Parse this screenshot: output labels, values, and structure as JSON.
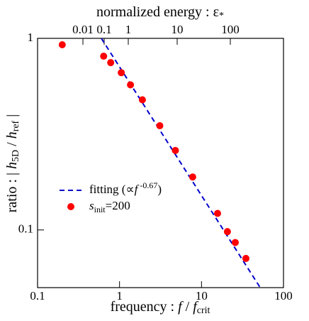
{
  "chart_data": {
    "type": "scatter",
    "x_label_parts": [
      "frequency : ",
      "f",
      " / ",
      "f",
      "crit"
    ],
    "y_label_parts": [
      "ratio : | ",
      "h",
      "5D",
      " / ",
      "h",
      "ref",
      " |"
    ],
    "x2_label_parts": [
      "normalized energy : ε",
      "*"
    ],
    "xlim": [
      0.1,
      100
    ],
    "xticks": [
      0.1,
      1,
      10,
      100
    ],
    "ylim": [
      0.05,
      1
    ],
    "yticks": [
      1,
      0.1
    ],
    "x2ticks": [
      0.01,
      0.1,
      1,
      10,
      100
    ],
    "log_x": true,
    "log_y": true,
    "series": [
      {
        "name_parts": [
          "fitting (∝",
          "f",
          " -0.67",
          ")"
        ],
        "kind": "dashed-line",
        "color": "#0000cc",
        "x": [
          0.6,
          52
        ],
        "values": [
          1.0,
          0.05
        ]
      },
      {
        "name_parts": [
          "s",
          "init",
          "=200"
        ],
        "kind": "points",
        "color": "#ff0000",
        "x": [
          0.2,
          0.64,
          0.78,
          1.05,
          1.36,
          1.9,
          3.1,
          4.8,
          7.8,
          15.7,
          20.7,
          25.8,
          34.8
        ],
        "values": [
          0.926,
          0.807,
          0.747,
          0.662,
          0.572,
          0.478,
          0.35,
          0.26,
          0.189,
          0.122,
          0.098,
          0.086,
          0.071
        ]
      }
    ]
  }
}
